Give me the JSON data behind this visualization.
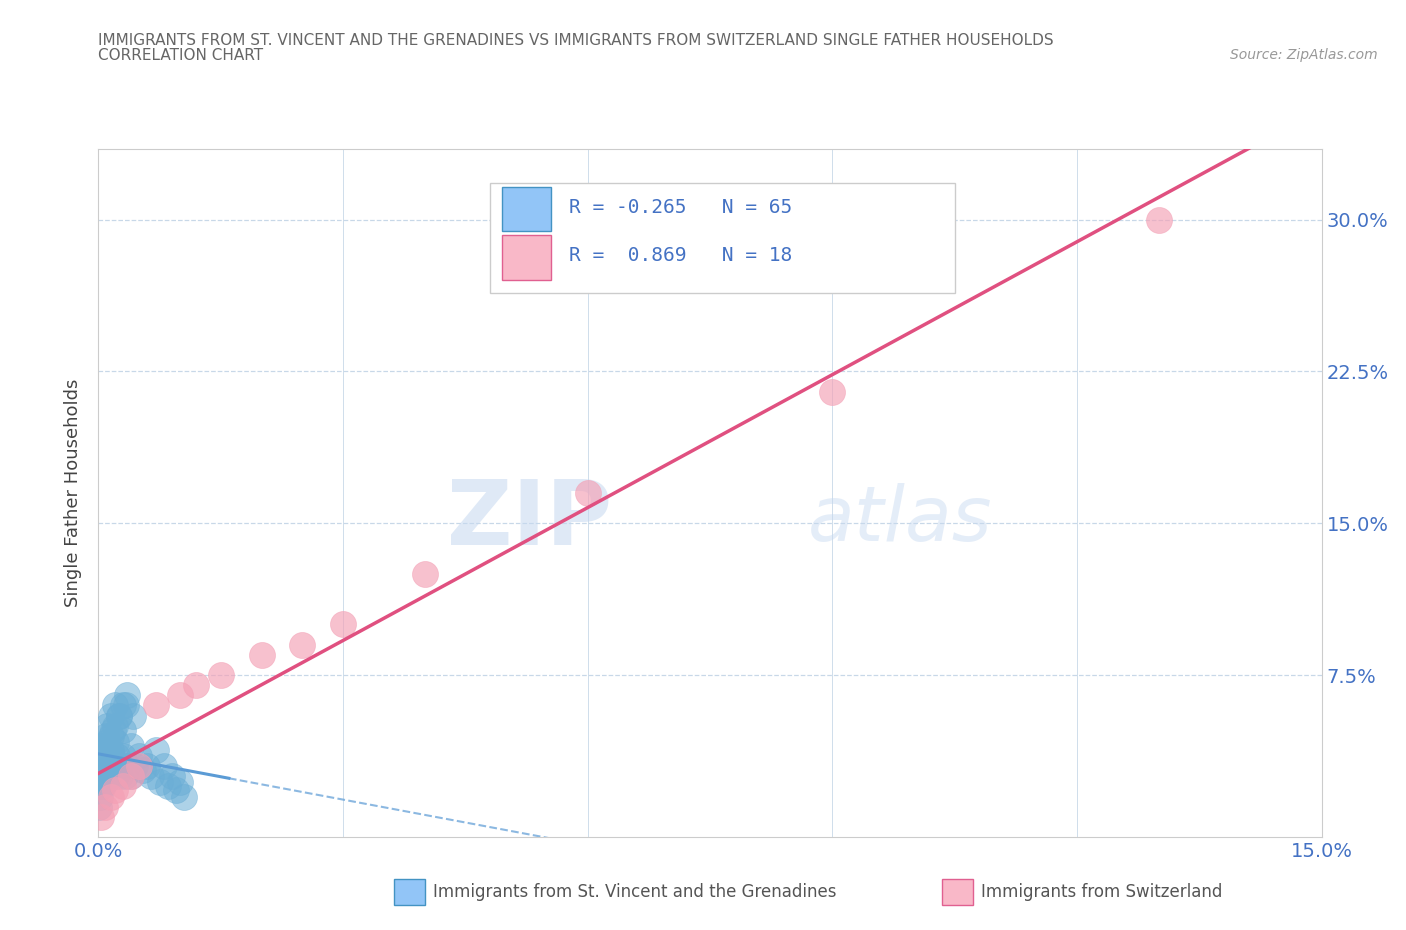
{
  "title_line1": "IMMIGRANTS FROM ST. VINCENT AND THE GRENADINES VS IMMIGRANTS FROM SWITZERLAND SINGLE FATHER HOUSEHOLDS",
  "title_line2": "CORRELATION CHART",
  "source": "Source: ZipAtlas.com",
  "ylabel": "Single Father Households",
  "xmin": 0.0,
  "xmax": 0.15,
  "ymin": -0.005,
  "ymax": 0.335,
  "legend1_label": "R = -0.265   N = 65",
  "legend2_label": "R =  0.869   N = 18",
  "legend1_color": "#92c5f7",
  "legend2_color": "#f9b8c8",
  "series1_color": "#6baed6",
  "series2_color": "#f4a0b5",
  "series1_edge": "#4393c3",
  "series2_edge": "#e06090",
  "trendline1_color": "#5b9bd5",
  "trendline2_color": "#e05080",
  "watermark_zip": "ZIP",
  "watermark_atlas": "atlas",
  "bottom_legend1": "Immigrants from St. Vincent and the Grenadines",
  "bottom_legend2": "Immigrants from Switzerland",
  "sv_x": [
    0.0002,
    0.0003,
    0.0004,
    0.0005,
    0.0005,
    0.0006,
    0.0007,
    0.0008,
    0.0008,
    0.0009,
    0.001,
    0.001,
    0.001,
    0.0012,
    0.0013,
    0.0014,
    0.0015,
    0.0015,
    0.0016,
    0.0017,
    0.0018,
    0.002,
    0.002,
    0.0022,
    0.0022,
    0.0023,
    0.0025,
    0.0026,
    0.0027,
    0.003,
    0.003,
    0.0032,
    0.0034,
    0.0035,
    0.004,
    0.004,
    0.0042,
    0.0045,
    0.005,
    0.0055,
    0.006,
    0.0065,
    0.007,
    0.0075,
    0.008,
    0.0085,
    0.009,
    0.0095,
    0.01,
    0.0105,
    0.0001,
    0.0002,
    0.0003,
    0.0004,
    0.0005,
    0.0006,
    0.0007,
    0.0008,
    0.0009,
    0.001,
    0.0015,
    0.002,
    0.0025,
    0.003,
    0.0035
  ],
  "sv_y": [
    0.025,
    0.03,
    0.02,
    0.035,
    0.04,
    0.028,
    0.032,
    0.022,
    0.038,
    0.045,
    0.03,
    0.042,
    0.05,
    0.025,
    0.033,
    0.028,
    0.038,
    0.055,
    0.025,
    0.035,
    0.048,
    0.03,
    0.06,
    0.025,
    0.042,
    0.035,
    0.055,
    0.03,
    0.025,
    0.048,
    0.035,
    0.025,
    0.06,
    0.03,
    0.04,
    0.025,
    0.055,
    0.03,
    0.035,
    0.028,
    0.03,
    0.025,
    0.038,
    0.022,
    0.03,
    0.02,
    0.025,
    0.018,
    0.022,
    0.015,
    0.01,
    0.015,
    0.02,
    0.025,
    0.03,
    0.02,
    0.025,
    0.03,
    0.035,
    0.04,
    0.045,
    0.05,
    0.055,
    0.06,
    0.065
  ],
  "ch_x": [
    0.0003,
    0.0008,
    0.0015,
    0.002,
    0.003,
    0.004,
    0.005,
    0.007,
    0.01,
    0.012,
    0.015,
    0.02,
    0.025,
    0.03,
    0.04,
    0.06,
    0.09,
    0.13
  ],
  "ch_y": [
    0.005,
    0.01,
    0.015,
    0.018,
    0.02,
    0.025,
    0.03,
    0.06,
    0.065,
    0.07,
    0.075,
    0.085,
    0.09,
    0.1,
    0.125,
    0.165,
    0.215,
    0.3
  ]
}
